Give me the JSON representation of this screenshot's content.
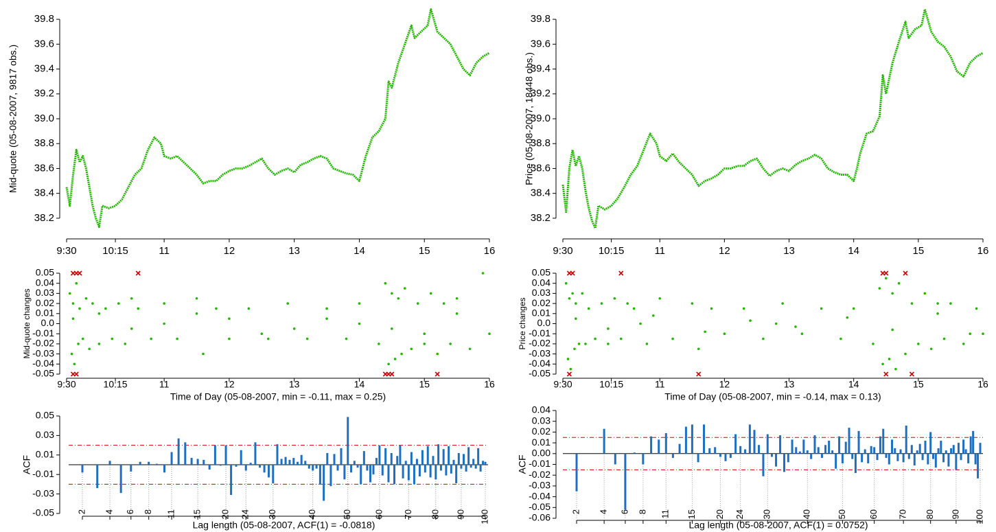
{
  "chart_data": [
    {
      "type": "line",
      "ylabel": "Mid-quote (05-08-2007, 9817 obs.)",
      "color": "#22b600",
      "x": [
        9.5,
        9.55,
        9.6,
        9.65,
        9.7,
        9.75,
        9.8,
        9.85,
        9.9,
        9.95,
        10.0,
        10.05,
        10.15,
        10.25,
        10.35,
        10.45,
        10.55,
        10.65,
        10.75,
        10.85,
        10.95,
        11.0,
        11.1,
        11.2,
        11.3,
        11.4,
        11.5,
        11.6,
        11.7,
        11.8,
        11.9,
        12.0,
        12.1,
        12.2,
        12.3,
        12.4,
        12.5,
        12.6,
        12.7,
        12.8,
        12.9,
        13.0,
        13.1,
        13.2,
        13.3,
        13.4,
        13.5,
        13.6,
        13.7,
        13.8,
        13.9,
        14.0,
        14.05,
        14.1,
        14.2,
        14.3,
        14.4,
        14.45,
        14.5,
        14.6,
        14.7,
        14.8,
        14.85,
        14.95,
        15.05,
        15.1,
        15.2,
        15.3,
        15.4,
        15.5,
        15.6,
        15.7,
        15.8,
        15.9,
        16.0
      ],
      "values": [
        38.45,
        38.3,
        38.55,
        38.75,
        38.65,
        38.7,
        38.6,
        38.45,
        38.3,
        38.2,
        38.13,
        38.3,
        38.28,
        38.3,
        38.35,
        38.45,
        38.55,
        38.6,
        38.75,
        38.85,
        38.8,
        38.7,
        38.68,
        38.7,
        38.65,
        38.6,
        38.55,
        38.48,
        38.5,
        38.5,
        38.55,
        38.58,
        38.6,
        38.6,
        38.62,
        38.65,
        38.68,
        38.6,
        38.55,
        38.58,
        38.6,
        38.57,
        38.63,
        38.65,
        38.68,
        38.7,
        38.68,
        38.6,
        38.58,
        38.56,
        38.55,
        38.5,
        38.6,
        38.7,
        38.85,
        38.9,
        39.0,
        39.3,
        39.25,
        39.45,
        39.6,
        39.75,
        39.65,
        39.7,
        39.75,
        39.88,
        39.7,
        39.65,
        39.6,
        39.5,
        39.4,
        39.35,
        39.45,
        39.5,
        39.53
      ],
      "xlim": [
        9.5,
        16
      ],
      "xticks": [
        {
          "value": 9.5,
          "label": "9:30"
        },
        {
          "value": 10.25,
          "label": "10:15"
        },
        11,
        12,
        13,
        14,
        15,
        16
      ],
      "ylim": [
        38.1,
        39.9
      ],
      "yticks": [
        38.2,
        38.4,
        38.6,
        38.8,
        {
          "value": 39,
          "label": "39.0"
        },
        39.2,
        39.4,
        39.6,
        39.8
      ]
    },
    {
      "type": "line",
      "ylabel": "Price (05-08-2007, 18448 obs.)",
      "color": "#22b600",
      "x": [
        9.5,
        9.55,
        9.6,
        9.65,
        9.7,
        9.75,
        9.8,
        9.85,
        9.9,
        9.95,
        10.0,
        10.05,
        10.15,
        10.25,
        10.35,
        10.45,
        10.55,
        10.65,
        10.75,
        10.85,
        10.95,
        11.0,
        11.1,
        11.2,
        11.3,
        11.4,
        11.5,
        11.6,
        11.7,
        11.8,
        11.9,
        12.0,
        12.1,
        12.2,
        12.3,
        12.4,
        12.5,
        12.6,
        12.7,
        12.8,
        12.9,
        13.0,
        13.1,
        13.2,
        13.3,
        13.4,
        13.5,
        13.6,
        13.7,
        13.8,
        13.9,
        14.0,
        14.05,
        14.1,
        14.2,
        14.3,
        14.4,
        14.45,
        14.5,
        14.6,
        14.7,
        14.8,
        14.85,
        14.95,
        15.05,
        15.1,
        15.2,
        15.3,
        15.4,
        15.5,
        15.6,
        15.7,
        15.8,
        15.9,
        16.0
      ],
      "values": [
        38.47,
        38.25,
        38.6,
        38.75,
        38.62,
        38.7,
        38.6,
        38.42,
        38.28,
        38.18,
        38.12,
        38.3,
        38.27,
        38.3,
        38.36,
        38.45,
        38.55,
        38.62,
        38.75,
        38.88,
        38.8,
        38.7,
        38.66,
        38.72,
        38.65,
        38.6,
        38.55,
        38.46,
        38.5,
        38.52,
        38.55,
        38.6,
        38.6,
        38.62,
        38.62,
        38.66,
        38.68,
        38.6,
        38.54,
        38.58,
        38.6,
        38.58,
        38.63,
        38.66,
        38.68,
        38.71,
        38.68,
        38.6,
        38.57,
        38.55,
        38.55,
        38.5,
        38.6,
        38.72,
        38.88,
        38.9,
        39.02,
        39.35,
        39.2,
        39.45,
        39.62,
        39.78,
        39.65,
        39.72,
        39.75,
        39.88,
        39.7,
        39.62,
        39.58,
        39.5,
        39.38,
        39.34,
        39.45,
        39.5,
        39.53
      ],
      "xlim": [
        9.5,
        16
      ],
      "xticks": [
        {
          "value": 9.5,
          "label": "9:30"
        },
        {
          "value": 10.25,
          "label": "10:15"
        },
        11,
        12,
        13,
        14,
        15,
        16
      ],
      "ylim": [
        38.1,
        39.9
      ],
      "yticks": [
        38.2,
        38.4,
        38.6,
        38.8,
        {
          "value": 39,
          "label": "39.0"
        },
        39.2,
        39.4,
        39.6,
        39.8
      ]
    },
    {
      "type": "scatter",
      "ylabel": "Mid-quote changes",
      "xlabel": "Time of Day (05-08-2007, min = -0.11, max = 0.25)",
      "color": "#22b600",
      "x": [
        9.55,
        9.58,
        9.6,
        9.62,
        9.65,
        9.68,
        9.7,
        9.75,
        9.8,
        9.85,
        9.9,
        10.0,
        10.1,
        10.2,
        10.3,
        10.4,
        10.5,
        10.6,
        10.8,
        11.0,
        11.2,
        11.5,
        11.6,
        11.8,
        12.0,
        12.3,
        12.6,
        12.9,
        13.2,
        13.5,
        13.8,
        14.0,
        14.3,
        14.4,
        14.45,
        14.5,
        14.55,
        14.6,
        14.65,
        14.7,
        14.8,
        14.9,
        15.0,
        15.1,
        15.2,
        15.3,
        15.4,
        15.5,
        15.7,
        15.9,
        16.0,
        9.6,
        10.5,
        11.5,
        12.5,
        13.5,
        14.5,
        15.5,
        10.0,
        12.0,
        13.0,
        15.0,
        11.0,
        14.0
      ],
      "values": [
        0.03,
        -0.03,
        0.02,
        -0.04,
        0.04,
        -0.02,
        0.015,
        -0.015,
        0.025,
        -0.025,
        0.02,
        -0.02,
        0.015,
        -0.015,
        0.02,
        -0.02,
        0.025,
        0.015,
        -0.015,
        0.02,
        -0.015,
        0.025,
        -0.03,
        0.015,
        -0.015,
        0.015,
        -0.015,
        0.02,
        -0.015,
        0.015,
        -0.015,
        0.02,
        -0.02,
        0.04,
        -0.04,
        0.03,
        -0.035,
        0.025,
        -0.03,
        0.035,
        -0.025,
        0.02,
        -0.02,
        0.03,
        -0.03,
        0.02,
        -0.02,
        0.025,
        -0.025,
        0.05,
        -0.01,
        0.005,
        -0.005,
        0.01,
        -0.01,
        0.005,
        -0.005,
        0.01,
        0.01,
        0.005,
        -0.005,
        -0.01,
        0,
        0
      ],
      "outliers_x": [
        9.6,
        9.65,
        9.7,
        10.6,
        9.6,
        9.65,
        14.4,
        14.45,
        14.5,
        15.2
      ],
      "outliers_values": [
        0.05,
        0.05,
        0.05,
        0.05,
        -0.05,
        -0.05,
        -0.05,
        -0.05,
        -0.05,
        -0.05
      ],
      "outliers_color": "#cc0000",
      "xlim": [
        9.5,
        16
      ],
      "xticks": [
        {
          "value": 9.5,
          "label": "9:30"
        },
        {
          "value": 10.25,
          "label": "10:15"
        },
        11,
        12,
        13,
        14,
        15,
        16
      ],
      "ylim": [
        -0.05,
        0.05
      ],
      "yticks": [
        -0.05,
        -0.04,
        -0.03,
        -0.02,
        -0.01,
        {
          "value": 0,
          "label": "0.0"
        },
        0.01,
        0.02,
        0.03,
        0.04,
        0.05
      ]
    },
    {
      "type": "scatter",
      "ylabel": "Price changes",
      "xlabel": "Time of Day (05-08-2007, min = -0.14, max = 0.13)",
      "color": "#22b600",
      "x": [
        9.55,
        9.58,
        9.6,
        9.62,
        9.65,
        9.68,
        9.7,
        9.75,
        9.8,
        9.85,
        9.9,
        10.0,
        10.1,
        10.2,
        10.3,
        10.4,
        10.5,
        10.6,
        10.8,
        11.0,
        11.2,
        11.5,
        11.6,
        11.8,
        12.0,
        12.3,
        12.6,
        12.9,
        13.2,
        13.5,
        13.8,
        14.0,
        14.3,
        14.4,
        14.45,
        14.5,
        14.55,
        14.6,
        14.65,
        14.7,
        14.8,
        14.9,
        15.0,
        15.1,
        15.2,
        15.3,
        15.4,
        15.5,
        15.7,
        15.9,
        16.0,
        9.7,
        10.2,
        10.9,
        11.7,
        12.4,
        13.1,
        13.9,
        14.6,
        15.3,
        15.8,
        12.8,
        10.7
      ],
      "values": [
        0.04,
        -0.035,
        0.025,
        -0.045,
        0.03,
        -0.025,
        0.02,
        -0.02,
        0.03,
        -0.02,
        0.015,
        -0.015,
        0.02,
        -0.02,
        0.025,
        -0.015,
        0.02,
        0.015,
        -0.02,
        0.025,
        -0.015,
        0.02,
        -0.025,
        0.015,
        -0.01,
        0.015,
        -0.015,
        0.02,
        -0.01,
        0.015,
        -0.015,
        0.015,
        -0.02,
        0.035,
        -0.04,
        0.045,
        -0.035,
        0.03,
        -0.045,
        0.04,
        -0.03,
        0.02,
        -0.02,
        0.03,
        -0.025,
        0.02,
        -0.015,
        0.02,
        -0.02,
        0.015,
        -0.01,
        0.005,
        -0.005,
        0.008,
        -0.008,
        0.003,
        -0.003,
        0.006,
        -0.006,
        0.01,
        -0.01,
        0,
        0
      ],
      "outliers_x": [
        9.6,
        9.65,
        10.4,
        14.45,
        14.5,
        14.8,
        9.6,
        11.6,
        14.5,
        14.9
      ],
      "outliers_values": [
        0.05,
        0.05,
        0.05,
        0.05,
        0.05,
        0.05,
        -0.05,
        -0.05,
        -0.05,
        -0.05
      ],
      "outliers_color": "#cc0000",
      "xlim": [
        9.5,
        16
      ],
      "xticks": [
        {
          "value": 9.5,
          "label": "9:30"
        },
        {
          "value": 10.25,
          "label": "10:15"
        },
        11,
        12,
        13,
        14,
        15,
        16
      ],
      "ylim": [
        -0.05,
        0.05
      ],
      "yticks": [
        -0.05,
        -0.04,
        -0.03,
        -0.02,
        -0.01,
        {
          "value": 0,
          "label": "0.0"
        },
        0.01,
        0.02,
        0.03,
        0.04,
        0.05
      ]
    },
    {
      "type": "bar",
      "ylabel": "ACF",
      "xlabel": "Lag length (05-08-2007, ACF(1) = -0.0818)",
      "color": "#1f6fc0",
      "conf_band": 0.02,
      "conf_color": "#cc0000",
      "xscale": "sqrt",
      "x": [
        2,
        3,
        4,
        5,
        6,
        7,
        8,
        9,
        10,
        11,
        12,
        13,
        14,
        15,
        16,
        17,
        18,
        19,
        20,
        21,
        22,
        23,
        24,
        25,
        26,
        27,
        28,
        29,
        30,
        31,
        32,
        33,
        34,
        35,
        36,
        37,
        38,
        39,
        40,
        41,
        42,
        43,
        44,
        45,
        46,
        47,
        48,
        49,
        50,
        51,
        52,
        53,
        54,
        55,
        56,
        57,
        58,
        59,
        60,
        61,
        62,
        63,
        64,
        65,
        66,
        67,
        68,
        69,
        70,
        71,
        72,
        73,
        74,
        75,
        76,
        77,
        78,
        79,
        80,
        81,
        82,
        83,
        84,
        85,
        86,
        87,
        88,
        89,
        90,
        91,
        92,
        93,
        94,
        95,
        96,
        97,
        98,
        99,
        100
      ],
      "values": [
        -0.008,
        -0.024,
        0.004,
        -0.029,
        -0.007,
        0.003,
        0.003,
        0.001,
        -0.008,
        0.013,
        0.027,
        0.023,
        0.007,
        0.006,
        0.005,
        -0.005,
        0.02,
        -0.001,
        0.02,
        -0.031,
        -0.002,
        0.015,
        -0.006,
        0.002,
        0.023,
        -0.003,
        -0.008,
        -0.013,
        -0.019,
        0.021,
        0.006,
        0.008,
        0.005,
        0.007,
        0.003,
        0.01,
        0.004,
        -0.004,
        -0.006,
        -0.004,
        -0.02,
        -0.037,
        0.012,
        -0.022,
        0.011,
        -0.006,
        0.017,
        -0.015,
        0.049,
        -0.008,
        0.004,
        -0.003,
        -0.02,
        0.014,
        -0.006,
        -0.018,
        -0.01,
        0.007,
        0.02,
        -0.011,
        0.017,
        -0.018,
        0.012,
        -0.02,
        0.009,
        0.02,
        -0.014,
        0.004,
        -0.016,
        0.013,
        -0.02,
        0.006,
        -0.012,
        0.015,
        -0.008,
        0.019,
        -0.013,
        0.009,
        -0.015,
        0.021,
        -0.006,
        0.016,
        -0.011,
        0.019,
        -0.009,
        0.005,
        -0.019,
        0.012,
        -0.004,
        0.011,
        -0.007,
        0.018,
        -0.003,
        0.006,
        -0.004,
        0.017,
        -0.007,
        0.004,
        0.003
      ],
      "xlim": [
        2,
        100
      ],
      "xticks": [
        2,
        4,
        6,
        8,
        11,
        15,
        20,
        24,
        30,
        40,
        50,
        60,
        70,
        80,
        90,
        100
      ],
      "ylim": [
        -0.05,
        0.05
      ],
      "yticks": [
        -0.05,
        -0.03,
        -0.01,
        0.01,
        0.03,
        0.05
      ]
    },
    {
      "type": "bar",
      "ylabel": "ACF",
      "xlabel": "Lag length (05-08-2007, ACF(1) = 0.0752)",
      "color": "#1f6fc0",
      "conf_band": 0.015,
      "conf_color": "#cc0000",
      "xscale": "sqrt",
      "x": [
        2,
        3,
        4,
        5,
        6,
        7,
        8,
        9,
        10,
        11,
        12,
        13,
        14,
        15,
        16,
        17,
        18,
        19,
        20,
        21,
        22,
        23,
        24,
        25,
        26,
        27,
        28,
        29,
        30,
        31,
        32,
        33,
        34,
        35,
        36,
        37,
        38,
        39,
        40,
        41,
        42,
        43,
        44,
        45,
        46,
        47,
        48,
        49,
        50,
        51,
        52,
        53,
        54,
        55,
        56,
        57,
        58,
        59,
        60,
        61,
        62,
        63,
        64,
        65,
        66,
        67,
        68,
        69,
        70,
        71,
        72,
        73,
        74,
        75,
        76,
        77,
        78,
        79,
        80,
        81,
        82,
        83,
        84,
        85,
        86,
        87,
        88,
        89,
        90,
        91,
        92,
        93,
        94,
        95,
        96,
        97,
        98,
        99,
        100
      ],
      "values": [
        -0.035,
        0.0,
        0.023,
        -0.01,
        -0.052,
        0.001,
        -0.01,
        0.016,
        0.013,
        0.019,
        -0.004,
        0.009,
        0.025,
        0.027,
        -0.008,
        0.027,
        0.005,
        0.006,
        -0.003,
        -0.007,
        -0.004,
        0.018,
        0.007,
        0.004,
        0.027,
        0.022,
        0.008,
        -0.021,
        0.018,
        -0.003,
        -0.012,
        0.017,
        -0.017,
        -0.008,
        0.013,
        0.006,
        0.002,
        0.013,
        0.003,
        -0.005,
        0.017,
        0.006,
        -0.004,
        0.008,
        0.012,
        0.003,
        -0.014,
        0.016,
        -0.009,
        0.011,
        0.024,
        -0.005,
        -0.018,
        0.021,
        -0.008,
        0.004,
        -0.009,
        0.007,
        0.006,
        -0.006,
        0.016,
        0.023,
        -0.004,
        -0.01,
        0.013,
        0.005,
        -0.007,
        0.004,
        -0.008,
        0.026,
        -0.005,
        0.008,
        -0.011,
        0.003,
        0.009,
        -0.006,
        0.012,
        -0.01,
        0.02,
        -0.005,
        -0.013,
        0.005,
        0.012,
        -0.008,
        0.003,
        -0.012,
        0.005,
        0.008,
        -0.015,
        0.01,
        -0.006,
        0.013,
        0.004,
        -0.009,
        0.016,
        0.021,
        -0.01,
        -0.023,
        0.01
      ],
      "xlim": [
        2,
        100
      ],
      "xticks": [
        2,
        4,
        6,
        8,
        11,
        15,
        20,
        24,
        30,
        40,
        50,
        60,
        70,
        80,
        90,
        100
      ],
      "ylim": [
        -0.06,
        0.04
      ],
      "yticks": [
        -0.06,
        -0.05,
        -0.04,
        -0.03,
        -0.02,
        -0.01,
        {
          "value": 0,
          "label": "0.00"
        },
        0.01,
        0.02,
        0.03,
        0.04
      ]
    }
  ]
}
